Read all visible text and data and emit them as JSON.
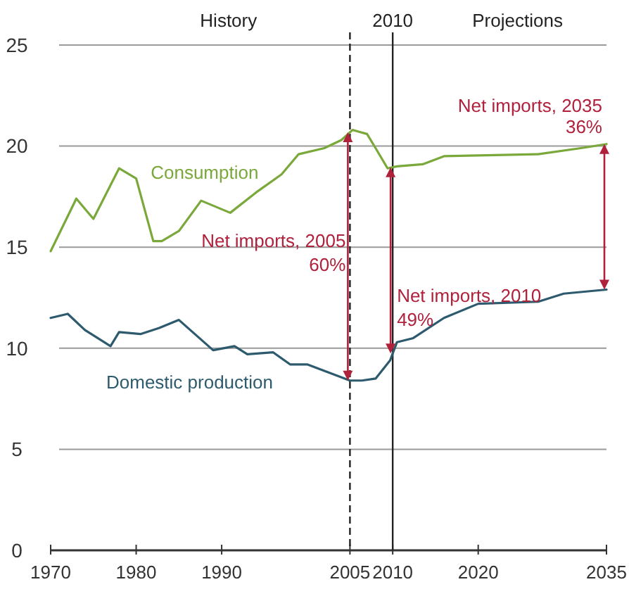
{
  "chart_data": {
    "type": "line",
    "annotations": [
      "History",
      "Projections",
      {
        "text": "Net imports, 2005\n60%",
        "x": 2005,
        "y": 15
      },
      {
        "text": "Net imports, 2010\n49%",
        "x": 2010,
        "y": 12.3
      },
      {
        "text": "Net imports, 2035\n36%",
        "x": 2035,
        "y": 20.1
      }
    ],
    "xlim": [
      1970,
      2035
    ],
    "xticks": [
      1970,
      1980,
      1990,
      2005,
      2010,
      2020,
      2035
    ],
    "ylim": [
      0,
      25
    ],
    "yticks": [
      0,
      5,
      10,
      15,
      20,
      25
    ],
    "grid": "y",
    "marker": "none",
    "line_style": "solid",
    "ref_lines": [
      {
        "axis": "x",
        "value": 2005,
        "line_style": "dashed",
        "color": "#222222"
      },
      {
        "axis": "x",
        "value": 2010,
        "label": "2010",
        "line_style": "solid",
        "color": "#222222"
      }
    ],
    "series": [
      {
        "name": "Consumption",
        "color": "#7aa83a",
        "x": [
          1970,
          1973,
          1975,
          1978,
          1980,
          1982,
          1983,
          1985,
          1987.6,
          1991,
          1994,
          1997,
          1999,
          2002,
          2004,
          2005.3,
          2007,
          2008,
          2009.4,
          2010.5,
          2013.5,
          2016,
          2027,
          2032,
          2035
        ],
        "values": [
          14.8,
          17.4,
          16.4,
          18.9,
          18.4,
          15.3,
          15.3,
          15.8,
          17.3,
          16.7,
          17.7,
          18.6,
          19.6,
          19.9,
          20.3,
          20.8,
          20.6,
          19.9,
          18.9,
          19.0,
          19.1,
          19.5,
          19.6,
          19.9,
          20.1
        ]
      },
      {
        "name": "Domestic production",
        "color": "#2e5a6e",
        "x": [
          1970,
          1972,
          1974,
          1977,
          1978,
          1980.5,
          1982.7,
          1985,
          1986.6,
          1989,
          1991.5,
          1993,
          1996,
          1998,
          2000,
          2002.5,
          2005,
          2006.4,
          2008,
          2009.7,
          2010.5,
          2012.4,
          2016,
          2020,
          2027,
          2030,
          2035
        ],
        "values": [
          11.5,
          11.7,
          10.9,
          10.1,
          10.8,
          10.7,
          11.0,
          11.4,
          10.8,
          9.9,
          10.1,
          9.7,
          9.8,
          9.2,
          9.2,
          8.8,
          8.4,
          8.4,
          8.5,
          9.4,
          10.3,
          10.5,
          11.5,
          12.2,
          12.3,
          12.7,
          12.9
        ]
      }
    ]
  }
}
